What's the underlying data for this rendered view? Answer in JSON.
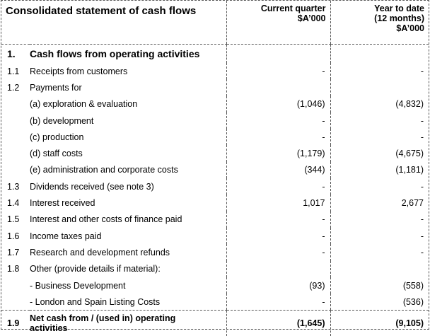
{
  "header": {
    "title": "Consolidated statement of cash flows",
    "col_current": "Current quarter\n$A’000",
    "col_current_line1": "Current quarter",
    "col_current_line2": "$A’000",
    "col_ytd_line1": "Year to date",
    "col_ytd_line2": "(12 months)",
    "col_ytd_line3": "$A’000"
  },
  "rows": [
    {
      "num": "1.",
      "desc": "Cash flows from operating activities",
      "cur": "",
      "ytd": ""
    },
    {
      "num": "1.1",
      "desc": "Receipts from customers",
      "cur": "-",
      "ytd": "-"
    },
    {
      "num": "1.2",
      "desc": "Payments for",
      "cur": "",
      "ytd": ""
    },
    {
      "num": "",
      "desc": "(a)  exploration & evaluation",
      "cur": "(1,046)",
      "ytd": "(4,832)"
    },
    {
      "num": "",
      "desc": "(b)  development",
      "cur": "-",
      "ytd": "-"
    },
    {
      "num": "",
      "desc": "(c)  production",
      "cur": "-",
      "ytd": "-"
    },
    {
      "num": "",
      "desc": "(d)  staff costs",
      "cur": "(1,179)",
      "ytd": "(4,675)"
    },
    {
      "num": "",
      "desc": "(e)  administration and corporate costs",
      "cur": "(344)",
      "ytd": "(1,181)"
    },
    {
      "num": "1.3",
      "desc": "Dividends received (see note 3)",
      "cur": "-",
      "ytd": "-"
    },
    {
      "num": "1.4",
      "desc": "Interest received",
      "cur": "1,017",
      "ytd": "2,677"
    },
    {
      "num": "1.5",
      "desc": "Interest and other costs of finance paid",
      "cur": "-",
      "ytd": "-"
    },
    {
      "num": "1.6",
      "desc": "Income taxes paid",
      "cur": "-",
      "ytd": "-"
    },
    {
      "num": "1.7",
      "desc": "Research and development refunds",
      "cur": "-",
      "ytd": "-"
    },
    {
      "num": "1.8",
      "desc": "Other (provide details if material):",
      "cur": "",
      "ytd": ""
    },
    {
      "num": "",
      "desc": "- Business Development",
      "cur": "(93)",
      "ytd": "(558)"
    },
    {
      "num": "",
      "desc": "- London and Spain Listing Costs",
      "cur": "-",
      "ytd": "(536)"
    }
  ],
  "total": {
    "num": "1.9",
    "desc_line1": "Net cash from / (used in) operating",
    "desc_line2": "activities",
    "cur": "(1,645)",
    "ytd": "(9,105)"
  }
}
